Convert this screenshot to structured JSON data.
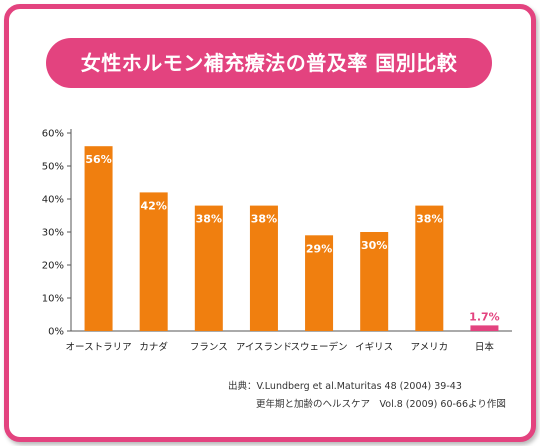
{
  "title": "女性ホルモン補充療法の普及率 国別比較",
  "colors": {
    "frame": "#e3437f",
    "bar": "#f07f0f",
    "bar_highlight": "#e3437f"
  },
  "chart_data": {
    "type": "bar",
    "title": "女性ホルモン補充療法の普及率 国別比較",
    "categories": [
      "オーストラリア",
      "カナダ",
      "フランス",
      "アイスランド",
      "スウェーデン",
      "イギリス",
      "アメリカ",
      "日本"
    ],
    "values": [
      56,
      42,
      38,
      38,
      29,
      30,
      38,
      1.7
    ],
    "data_labels": [
      "56%",
      "42%",
      "38%",
      "38%",
      "29%",
      "30%",
      "38%",
      "1.7%"
    ],
    "yticks": [
      "0%",
      "10%",
      "20%",
      "30%",
      "40%",
      "50%",
      "60%"
    ],
    "ylim": [
      0,
      60
    ],
    "xlabel": "",
    "ylabel": "",
    "grid": false,
    "highlight_category": "日本"
  },
  "source": {
    "line1": "出典：V.Lundberg et al.Maturitas 48 (2004) 39-43",
    "line2": "更年期と加齢のヘルスケア　Vol.8 (2009) 60-66より作図"
  }
}
